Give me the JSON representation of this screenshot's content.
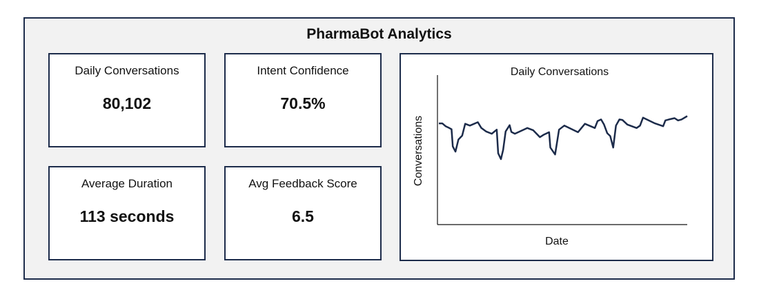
{
  "title": "PharmaBot Analytics",
  "cards": [
    {
      "label": "Daily Conversations",
      "value": "80,102"
    },
    {
      "label": "Intent Confidence",
      "value": "70.5%"
    },
    {
      "label": "Average Duration",
      "value": "113 seconds"
    },
    {
      "label": "Avg Feedback Score",
      "value": "6.5"
    }
  ],
  "colors": {
    "border": "#1c2b4a",
    "line": "#1c2b4a",
    "background": "#f2f2f2"
  },
  "chart_data": {
    "type": "line",
    "title": "Daily Conversations",
    "xlabel": "Date",
    "ylabel": "Conversations",
    "ylim": [
      0,
      100
    ],
    "xlim": [
      0,
      100
    ],
    "grid": false,
    "x": [
      0,
      1.4,
      2.8,
      4.2,
      5.1,
      5.6,
      6.7,
      7.9,
      9.4,
      10.6,
      12.5,
      15.7,
      17.1,
      19,
      21.3,
      23.3,
      23.9,
      25,
      25.9,
      26.9,
      28.5,
      29.2,
      30.6,
      35.6,
      38,
      40.7,
      42.1,
      44.4,
      44.9,
      46.8,
      48.4,
      50.5,
      56,
      58.8,
      62.8,
      63.9,
      65.3,
      66.5,
      67.8,
      69,
      70.2,
      71.3,
      72.7,
      73.9,
      75.9,
      79.6,
      81,
      82.2,
      87,
      90.3,
      91.2,
      92.6,
      94.9,
      96.3,
      97.7,
      100
    ],
    "y": [
      67.7,
      67.7,
      65.7,
      64.6,
      63.8,
      52.3,
      48.8,
      56.9,
      59.5,
      67.4,
      66.2,
      68.5,
      64.6,
      62.3,
      60.8,
      63.5,
      47.7,
      43.8,
      50,
      62.3,
      66.5,
      62,
      60.8,
      64.6,
      63.1,
      58.5,
      60,
      61.8,
      51.5,
      46.9,
      63.5,
      66.2,
      61.8,
      67.4,
      64.6,
      69.2,
      70.3,
      66.9,
      61.1,
      59.2,
      51.5,
      66.2,
      70.3,
      70,
      66.9,
      64.6,
      66.2,
      71.5,
      67.7,
      65.8,
      69.7,
      70.3,
      71.2,
      69.7,
      70.3,
      72.6
    ]
  }
}
